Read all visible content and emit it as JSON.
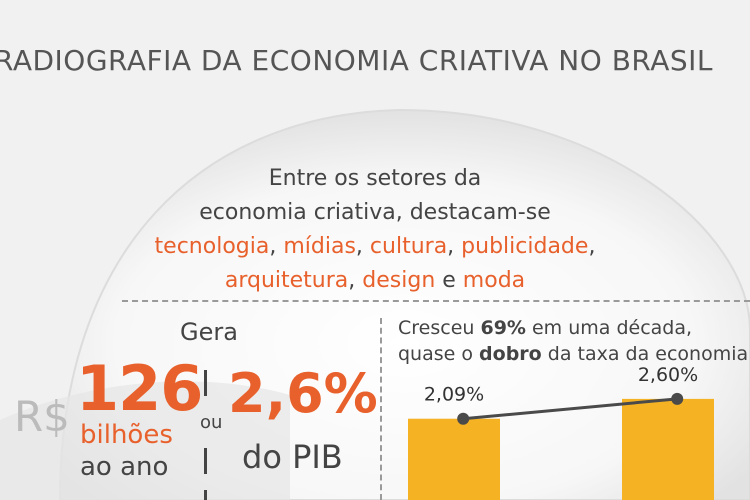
{
  "header": {
    "title": "RADIOGRAFIA DA ECONOMIA CRIATIVA NO BRASIL"
  },
  "intro": {
    "line1": "Entre os setores da",
    "line2": "economia criativa, destacam-se",
    "sectors": [
      "tecnologia",
      "mídias",
      "cultura",
      "publicidade",
      "arquitetura",
      "design",
      "moda"
    ],
    "sep": ", ",
    "and_word": " e "
  },
  "stats": {
    "gera_label": "Gera",
    "currency": "R$",
    "amount": "126",
    "amount_unit": "bilhões",
    "amount_period": "ao ano",
    "or_word": "ou",
    "pib_share": "2,6%",
    "pib_label": "do PIB"
  },
  "growth": {
    "text_prefix": "Cresceu ",
    "growth_pct": "69%",
    "text_mid": " em uma década,",
    "text_line2_prefix": "quase o ",
    "dobro": "dobro",
    "text_line2_suffix": " da taxa da economia"
  },
  "chart_data": {
    "type": "bar",
    "categories": [
      "",
      ""
    ],
    "values": [
      2.09,
      2.6
    ],
    "data_labels": [
      "2,09%",
      "2,60%"
    ],
    "title": "",
    "xlabel": "",
    "ylabel": "",
    "ylim": [
      0,
      3.6
    ],
    "overlay": "line connecting bar tops",
    "colors": {
      "bar": "#f5b324",
      "line": "#4a4a4a",
      "accent": "#e8612c"
    }
  }
}
